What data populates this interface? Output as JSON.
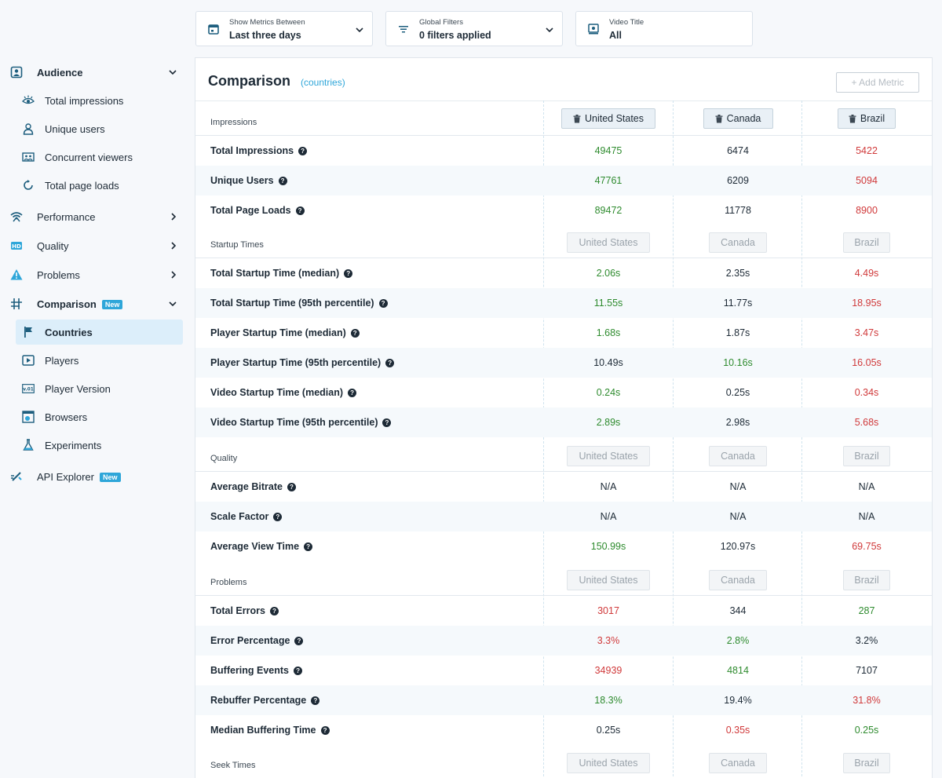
{
  "filters": [
    {
      "caption": "Show Metrics Between",
      "value": "Last three days",
      "icon": "calendar-icon",
      "dropdown": true
    },
    {
      "caption": "Global Filters",
      "value": "0 filters applied",
      "icon": "filter-icon",
      "dropdown": true
    },
    {
      "caption": "Video Title",
      "value": "All",
      "icon": "video-title-icon",
      "dropdown": false
    }
  ],
  "sidebar": {
    "sections": [
      {
        "label": "Audience",
        "icon": "audience-icon",
        "open": true,
        "badge": "",
        "children": [
          {
            "label": "Total impressions",
            "icon": "eye-icon"
          },
          {
            "label": "Unique users",
            "icon": "user-icon"
          },
          {
            "label": "Concurrent viewers",
            "icon": "concurrent-viewers-icon"
          },
          {
            "label": "Total page loads",
            "icon": "reload-icon"
          }
        ]
      },
      {
        "label": "Performance",
        "icon": "wifi-icon",
        "open": false,
        "badge": "",
        "children": []
      },
      {
        "label": "Quality",
        "icon": "hd-icon",
        "open": false,
        "badge": "",
        "children": []
      },
      {
        "label": "Problems",
        "icon": "warning-icon",
        "open": false,
        "badge": "",
        "children": []
      },
      {
        "label": "Comparison",
        "icon": "comparison-icon",
        "open": true,
        "badge": "New",
        "children": [
          {
            "label": "Countries",
            "icon": "flag-icon",
            "active": true
          },
          {
            "label": "Players",
            "icon": "player-icon"
          },
          {
            "label": "Player Version",
            "icon": "version-icon"
          },
          {
            "label": "Browsers",
            "icon": "browser-icon"
          },
          {
            "label": "Experiments",
            "icon": "flask-icon"
          }
        ]
      },
      {
        "label": "API Explorer",
        "icon": "api-icon",
        "open": false,
        "badge": "New",
        "children": []
      }
    ]
  },
  "panel": {
    "title": "Comparison",
    "subtitle": "(countries)",
    "add_metric": "+ Add Metric",
    "columns": [
      "United States",
      "Canada",
      "Brazil"
    ]
  },
  "colors": {
    "green": "#2e8b2e",
    "red": "#d0393a",
    "accent": "#2ea6d9"
  },
  "sections": [
    {
      "title": "Impressions",
      "rows": [
        {
          "name": "Total Impressions",
          "values": [
            "49475",
            "6474",
            "5422"
          ],
          "status": [
            "green",
            "neutral",
            "red"
          ]
        },
        {
          "name": "Unique Users",
          "values": [
            "47761",
            "6209",
            "5094"
          ],
          "status": [
            "green",
            "neutral",
            "red"
          ]
        },
        {
          "name": "Total Page Loads",
          "values": [
            "89472",
            "11778",
            "8900"
          ],
          "status": [
            "green",
            "neutral",
            "red"
          ]
        }
      ]
    },
    {
      "title": "Startup Times",
      "rows": [
        {
          "name": "Total Startup Time (median)",
          "values": [
            "2.06s",
            "2.35s",
            "4.49s"
          ],
          "status": [
            "green",
            "neutral",
            "red"
          ]
        },
        {
          "name": "Total Startup Time (95th percentile)",
          "values": [
            "11.55s",
            "11.77s",
            "18.95s"
          ],
          "status": [
            "green",
            "neutral",
            "red"
          ]
        },
        {
          "name": "Player Startup Time (median)",
          "values": [
            "1.68s",
            "1.87s",
            "3.47s"
          ],
          "status": [
            "green",
            "neutral",
            "red"
          ]
        },
        {
          "name": "Player Startup Time (95th percentile)",
          "values": [
            "10.49s",
            "10.16s",
            "16.05s"
          ],
          "status": [
            "neutral",
            "green",
            "red"
          ]
        },
        {
          "name": "Video Startup Time (median)",
          "values": [
            "0.24s",
            "0.25s",
            "0.34s"
          ],
          "status": [
            "green",
            "neutral",
            "red"
          ]
        },
        {
          "name": "Video Startup Time (95th percentile)",
          "values": [
            "2.89s",
            "2.98s",
            "5.68s"
          ],
          "status": [
            "green",
            "neutral",
            "red"
          ]
        }
      ]
    },
    {
      "title": "Quality",
      "rows": [
        {
          "name": "Average Bitrate",
          "values": [
            "N/A",
            "N/A",
            "N/A"
          ],
          "status": [
            "neutral",
            "neutral",
            "neutral"
          ]
        },
        {
          "name": "Scale Factor",
          "values": [
            "N/A",
            "N/A",
            "N/A"
          ],
          "status": [
            "neutral",
            "neutral",
            "neutral"
          ]
        },
        {
          "name": "Average View Time",
          "values": [
            "150.99s",
            "120.97s",
            "69.75s"
          ],
          "status": [
            "green",
            "neutral",
            "red"
          ]
        }
      ]
    },
    {
      "title": "Problems",
      "rows": [
        {
          "name": "Total Errors",
          "values": [
            "3017",
            "344",
            "287"
          ],
          "status": [
            "red",
            "neutral",
            "green"
          ]
        },
        {
          "name": "Error Percentage",
          "values": [
            "3.3%",
            "2.8%",
            "3.2%"
          ],
          "status": [
            "red",
            "green",
            "neutral"
          ]
        },
        {
          "name": "Buffering Events",
          "values": [
            "34939",
            "4814",
            "7107"
          ],
          "status": [
            "red",
            "green",
            "neutral"
          ]
        },
        {
          "name": "Rebuffer Percentage",
          "values": [
            "18.3%",
            "19.4%",
            "31.8%"
          ],
          "status": [
            "green",
            "neutral",
            "red"
          ]
        },
        {
          "name": "Median Buffering Time",
          "values": [
            "0.25s",
            "0.35s",
            "0.25s"
          ],
          "status": [
            "neutral",
            "red",
            "green"
          ]
        }
      ]
    },
    {
      "title": "Seek Times",
      "rows": []
    }
  ]
}
